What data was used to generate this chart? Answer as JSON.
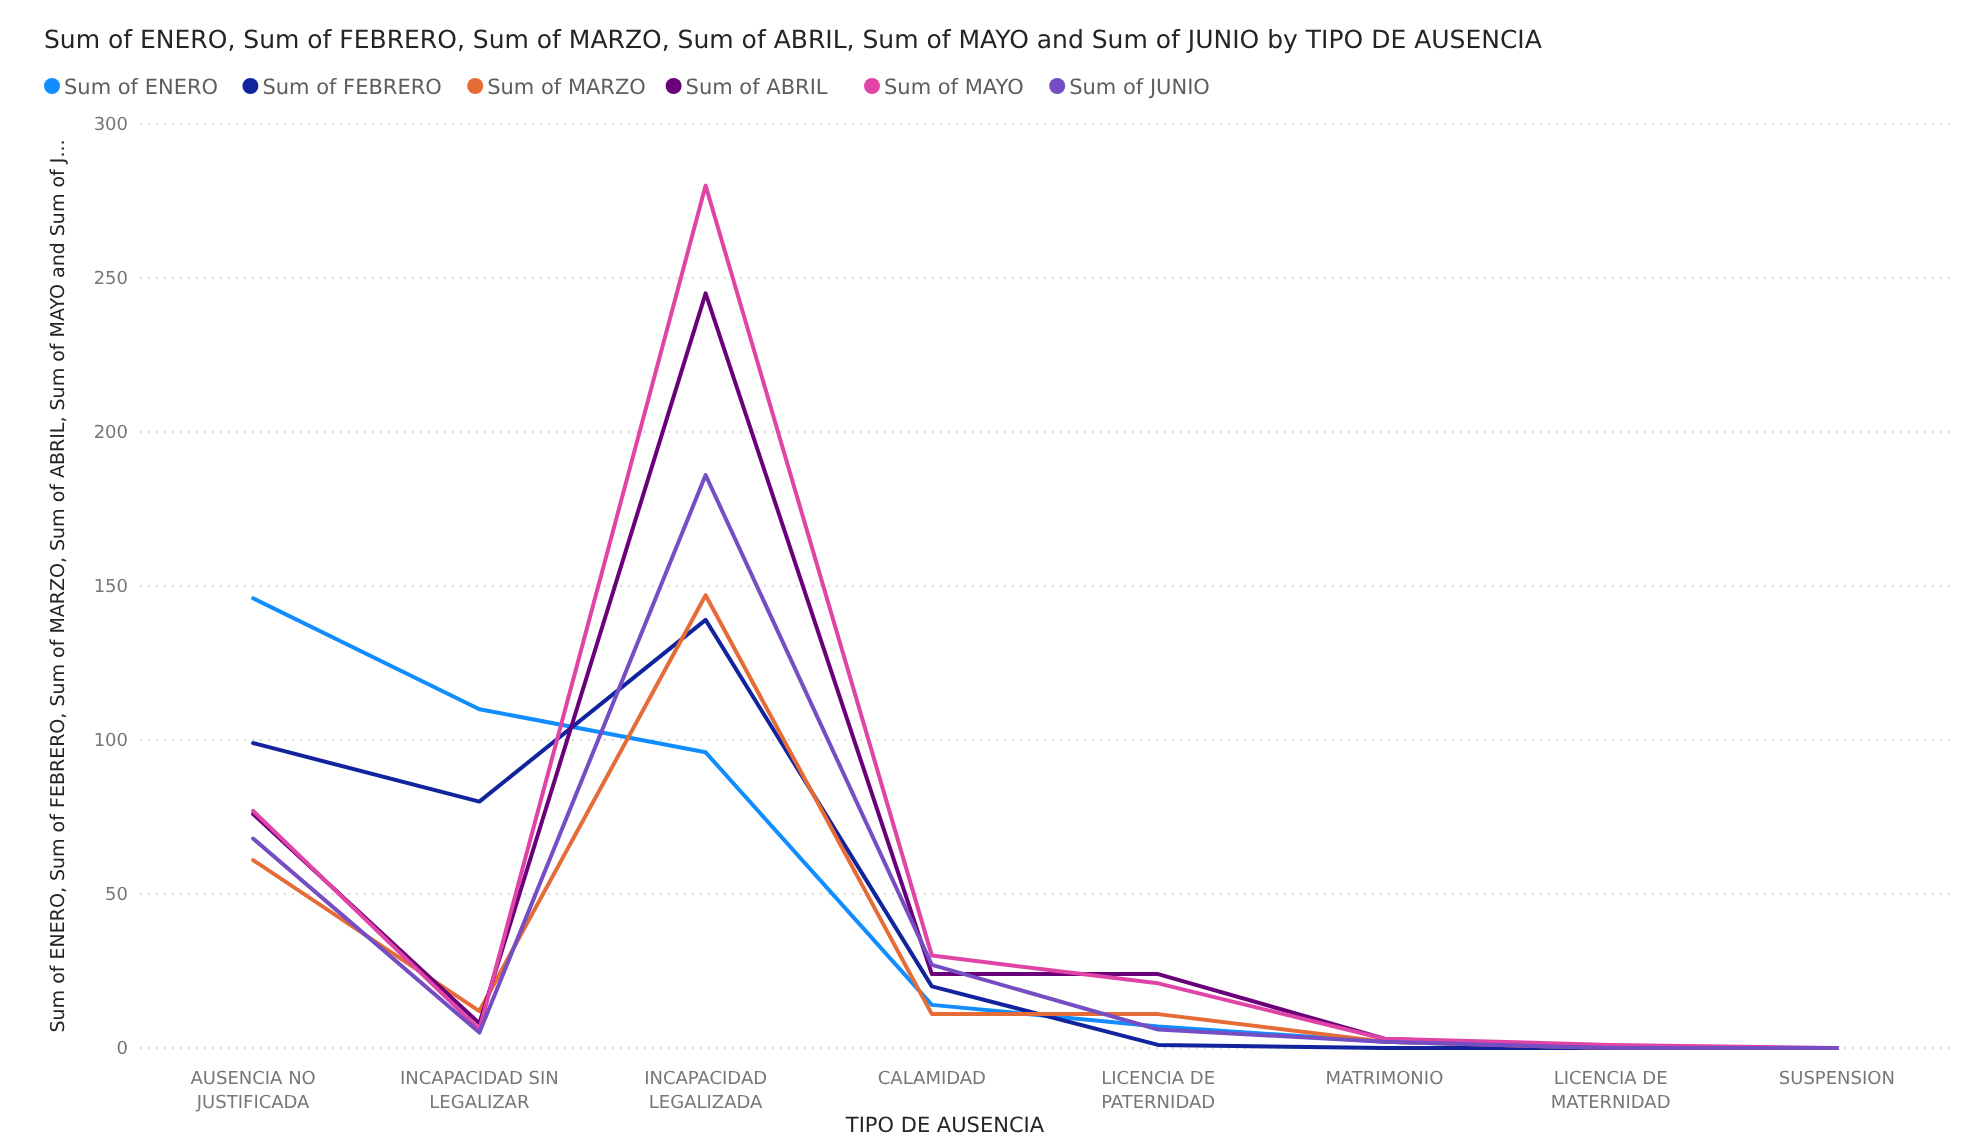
{
  "chart_data": {
    "type": "line",
    "title": "Sum of ENERO, Sum of FEBRERO, Sum of MARZO, Sum of ABRIL, Sum of MAYO and Sum of JUNIO by TIPO DE AUSENCIA",
    "xlabel": "TIPO DE AUSENCIA",
    "ylabel": "Sum of ENERO, Sum of FEBRERO, Sum of MARZO, Sum of ABRIL, Sum of MAYO and Sum of J...",
    "categories": [
      "AUSENCIA NO JUSTIFICADA",
      "INCAPACIDAD SIN LEGALIZAR",
      "INCAPACIDAD LEGALIZADA",
      "CALAMIDAD",
      "LICENCIA DE PATERNIDAD",
      "MATRIMONIO",
      "LICENCIA DE MATERNIDAD",
      "SUSPENSION"
    ],
    "series": [
      {
        "name": "Sum of ENERO",
        "color": "#118dff",
        "values": [
          146,
          110,
          96,
          14,
          7,
          2,
          0,
          0
        ]
      },
      {
        "name": "Sum of FEBRERO",
        "color": "#12239e",
        "values": [
          99,
          80,
          139,
          20,
          1,
          0,
          0,
          0
        ]
      },
      {
        "name": "Sum of MARZO",
        "color": "#e66c37",
        "values": [
          61,
          12,
          147,
          11,
          11,
          2,
          0,
          0
        ]
      },
      {
        "name": "Sum of ABRIL",
        "color": "#6b007b",
        "values": [
          76,
          8,
          245,
          24,
          24,
          3,
          0,
          0
        ]
      },
      {
        "name": "Sum of MAYO",
        "color": "#e044a7",
        "values": [
          77,
          6,
          280,
          30,
          21,
          3,
          1,
          0
        ]
      },
      {
        "name": "Sum of JUNIO",
        "color": "#744ec2",
        "values": [
          68,
          5,
          186,
          27,
          6,
          2,
          0,
          0
        ]
      }
    ],
    "ylim": [
      0,
      300
    ],
    "yticks": [
      0,
      50,
      100,
      150,
      200,
      250,
      300
    ],
    "grid": "y",
    "legend": "top left",
    "marker": "none",
    "line_style": "solid"
  }
}
